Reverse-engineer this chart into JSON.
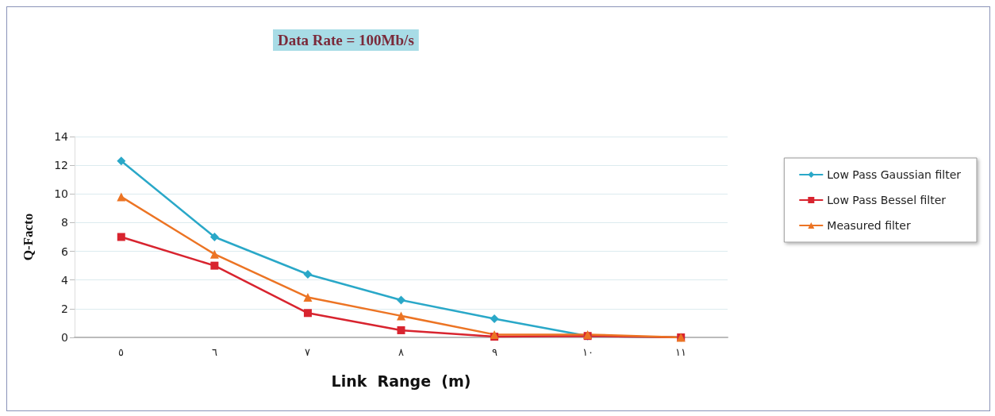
{
  "chart_data": {
    "type": "line",
    "title": "Data Rate = 100Mb/s",
    "xlabel": "Link  Range  (m)",
    "ylabel": "Q-Facto",
    "categories": [
      "٥",
      "٦",
      "٧",
      "٨",
      "٩",
      "١٠",
      "١١"
    ],
    "series": [
      {
        "name": "Low Pass Gaussian filter",
        "color": "#2aa8c8",
        "marker": "diamond",
        "values": [
          12.3,
          7,
          4.4,
          2.6,
          1.3,
          0.1,
          0
        ]
      },
      {
        "name": "Low Pass Bessel filter",
        "color": "#d8242f",
        "marker": "square",
        "values": [
          7,
          5,
          1.7,
          0.5,
          0.05,
          0.1,
          0
        ]
      },
      {
        "name": "Measured filter",
        "color": "#ec7424",
        "marker": "triangle",
        "values": [
          9.8,
          5.8,
          2.8,
          1.5,
          0.2,
          0.2,
          0
        ]
      }
    ],
    "ylim": [
      0,
      14
    ],
    "yticks": [
      0,
      2,
      4,
      6,
      8,
      10,
      12,
      14
    ],
    "grid": "y",
    "legend": "right",
    "line_style": "solid"
  }
}
